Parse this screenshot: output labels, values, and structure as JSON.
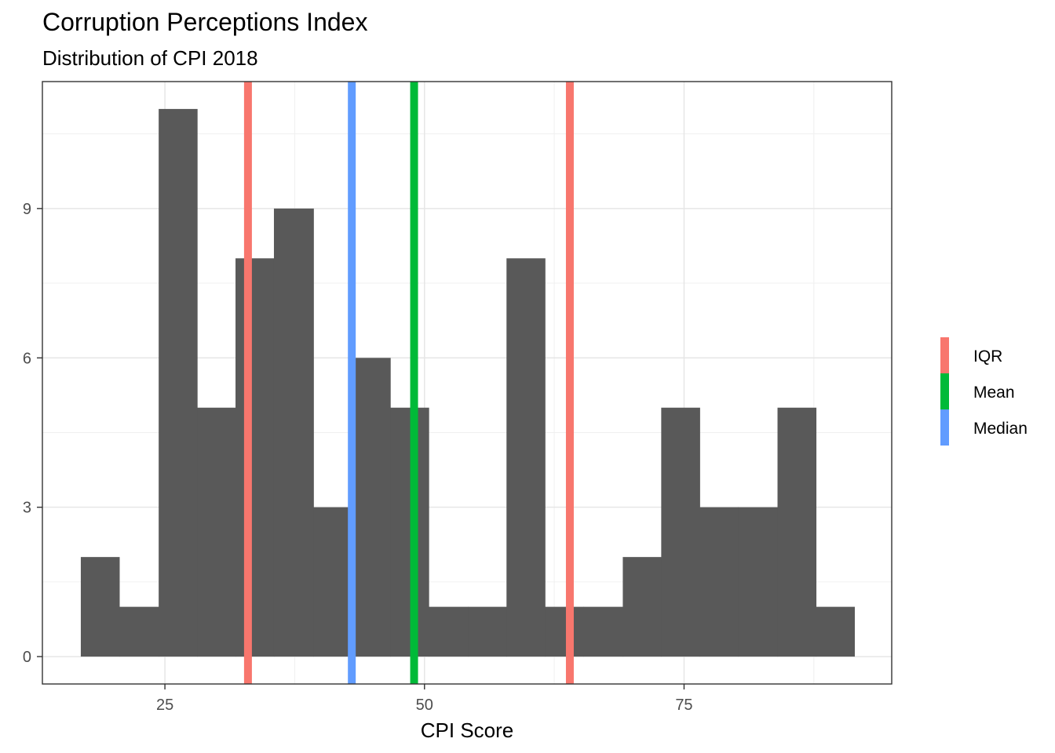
{
  "chart_data": {
    "type": "bar",
    "title": "Corruption Perceptions Index",
    "subtitle": "Distribution of CPI 2018",
    "xlabel": "CPI Score",
    "ylabel": "",
    "xlim": [
      13.2,
      95.0
    ],
    "ylim": [
      -0.55,
      11.55
    ],
    "x_ticks": [
      25,
      50,
      75
    ],
    "y_ticks": [
      0,
      3,
      6,
      9
    ],
    "grid": true,
    "bin_width": 3.72,
    "bins": [
      {
        "start": 16.9,
        "end": 20.6,
        "count": 2
      },
      {
        "start": 20.6,
        "end": 24.4,
        "count": 1
      },
      {
        "start": 24.4,
        "end": 28.1,
        "count": 11
      },
      {
        "start": 28.1,
        "end": 31.8,
        "count": 5
      },
      {
        "start": 31.8,
        "end": 35.5,
        "count": 8
      },
      {
        "start": 35.5,
        "end": 39.3,
        "count": 9
      },
      {
        "start": 39.3,
        "end": 43.0,
        "count": 3
      },
      {
        "start": 43.0,
        "end": 46.7,
        "count": 6
      },
      {
        "start": 46.7,
        "end": 50.4,
        "count": 5
      },
      {
        "start": 50.4,
        "end": 54.2,
        "count": 1
      },
      {
        "start": 54.2,
        "end": 57.9,
        "count": 1
      },
      {
        "start": 57.9,
        "end": 61.6,
        "count": 8
      },
      {
        "start": 61.6,
        "end": 65.3,
        "count": 1
      },
      {
        "start": 65.3,
        "end": 69.1,
        "count": 1
      },
      {
        "start": 69.1,
        "end": 72.8,
        "count": 2
      },
      {
        "start": 72.8,
        "end": 76.5,
        "count": 5
      },
      {
        "start": 76.5,
        "end": 80.2,
        "count": 3
      },
      {
        "start": 80.2,
        "end": 84.0,
        "count": 3
      },
      {
        "start": 84.0,
        "end": 87.7,
        "count": 5
      },
      {
        "start": 87.7,
        "end": 91.4,
        "count": 1
      }
    ],
    "bar_color": "#595959",
    "reference_lines": [
      {
        "name": "IQR",
        "x": 33.0,
        "color": "#F8766D"
      },
      {
        "name": "IQR",
        "x": 64.0,
        "color": "#F8766D"
      },
      {
        "name": "Median",
        "x": 43.0,
        "color": "#619CFF"
      },
      {
        "name": "Mean",
        "x": 49.0,
        "color": "#00BA38"
      }
    ],
    "legend": {
      "position": "right",
      "entries": [
        {
          "label": "IQR",
          "color": "#F8766D"
        },
        {
          "label": "Mean",
          "color": "#00BA38"
        },
        {
          "label": "Median",
          "color": "#619CFF"
        }
      ]
    }
  }
}
